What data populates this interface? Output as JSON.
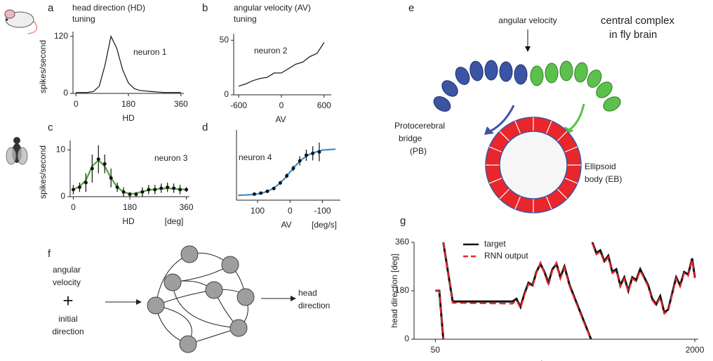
{
  "panels": {
    "a": {
      "label": "a",
      "title": [
        "head direction (HD)",
        "tuning"
      ],
      "ylabel": "spikes/second",
      "xlabel": "HD",
      "annotation": "neuron 1",
      "x": [
        0,
        20,
        40,
        60,
        80,
        100,
        120,
        140,
        160,
        180,
        200,
        220,
        240,
        260,
        280,
        300,
        320,
        340,
        360
      ],
      "values": [
        2,
        2,
        2,
        4,
        15,
        60,
        120,
        95,
        50,
        22,
        10,
        6,
        5,
        4,
        3,
        2,
        2,
        2,
        2
      ],
      "color": "#222222",
      "xlim": [
        -10,
        370
      ],
      "ylim": [
        0,
        130
      ],
      "xticks": [
        0,
        180,
        360
      ],
      "yticks": [
        0,
        120
      ]
    },
    "b": {
      "label": "b",
      "title": [
        "angular velocity (AV)",
        "tuning"
      ],
      "xlabel": "AV",
      "annotation": "neuron 2",
      "x": [
        -600,
        -500,
        -400,
        -300,
        -200,
        -100,
        0,
        100,
        200,
        300,
        400,
        500,
        600
      ],
      "values": [
        8,
        10,
        13,
        15,
        16,
        20,
        20,
        24,
        28,
        30,
        35,
        38,
        48
      ],
      "color": "#222222",
      "xlim": [
        -670,
        700
      ],
      "ylim": [
        0,
        56
      ],
      "xticks": [
        -600,
        0,
        600
      ],
      "yticks": [
        0,
        50
      ]
    },
    "c": {
      "label": "c",
      "ylabel": "spikes/second",
      "xlabel": "HD",
      "unit": "[deg]",
      "annotation": "neuron 3",
      "x": [
        0,
        20,
        40,
        60,
        80,
        100,
        120,
        140,
        160,
        180,
        200,
        220,
        240,
        260,
        280,
        300,
        320,
        340,
        360
      ],
      "values": [
        1.5,
        2,
        3,
        6,
        8,
        7,
        4,
        2,
        1,
        0.5,
        0.5,
        1,
        1.5,
        1.5,
        1.8,
        2,
        1.8,
        1.5,
        1.5
      ],
      "errors": [
        1,
        1,
        2,
        3,
        3,
        2,
        2,
        1,
        1,
        0.5,
        0.5,
        1,
        1,
        1,
        1,
        1,
        1,
        1,
        0.5
      ],
      "fit": [
        1.5,
        2.2,
        3.5,
        6.5,
        7.8,
        6.5,
        4,
        2,
        1,
        0.6,
        0.7,
        1.1,
        1.4,
        1.6,
        1.7,
        1.8,
        1.7,
        1.6,
        1.5
      ],
      "point_color": "#111111",
      "fit_color": "#4aa832",
      "xlim": [
        -10,
        370
      ],
      "ylim": [
        0,
        12
      ],
      "xticks": [
        0,
        180,
        360
      ],
      "yticks": [
        0,
        10
      ]
    },
    "d": {
      "label": "d",
      "xlabel": "AV",
      "unit": "[deg/s]",
      "annotation": "neuron 4",
      "x": [
        110,
        90,
        70,
        50,
        30,
        10,
        -10,
        -30,
        -50,
        -70,
        -90
      ],
      "values": [
        0.03,
        0.05,
        0.09,
        0.15,
        0.27,
        0.42,
        0.58,
        0.74,
        0.86,
        0.9,
        0.93
      ],
      "errors": [
        0.02,
        0.02,
        0.03,
        0.03,
        0.04,
        0.05,
        0.06,
        0.1,
        0.12,
        0.15,
        0.2
      ],
      "fit_x": [
        160,
        140,
        120,
        100,
        80,
        60,
        40,
        20,
        0,
        -20,
        -40,
        -60,
        -80,
        -100,
        -120,
        -140
      ],
      "fit": [
        0.005,
        0.009,
        0.018,
        0.034,
        0.065,
        0.12,
        0.21,
        0.34,
        0.5,
        0.66,
        0.79,
        0.88,
        0.93,
        0.97,
        0.98,
        0.99
      ],
      "point_color": "#111111",
      "fit_color": "#3a8fd0",
      "xlim": [
        165,
        -155
      ],
      "ylim": [
        -0.1,
        1.4
      ],
      "xticks": [
        100,
        0,
        -100
      ]
    },
    "e": {
      "label": "e",
      "title": [
        "central complex",
        "in fly brain"
      ],
      "input": "angular velocity",
      "pb": [
        "Protocerebral",
        "bridge",
        "(PB)"
      ],
      "eb": [
        "Ellipsoid",
        "body (EB)"
      ]
    },
    "f": {
      "label": "f",
      "input1": [
        "angular",
        "velocity"
      ],
      "plus": "+",
      "input2": [
        "initial",
        "direction"
      ],
      "output": [
        "head",
        "direction"
      ]
    },
    "g": {
      "label": "g",
      "ylabel": "head direction [deg]",
      "xlabel": "timestep",
      "x": [
        50,
        80,
        110,
        null,
        110,
        180,
        630,
        660,
        690,
        720,
        750,
        780,
        810,
        840,
        870,
        900,
        930,
        960,
        990,
        1020,
        1060,
        1100,
        1140,
        1180,
        1220,
        null,
        1230,
        1260,
        1290,
        1320,
        1350,
        1380,
        1410,
        1440,
        1470,
        1500,
        1530,
        1560,
        1590,
        1620,
        1650,
        1680,
        1710,
        1740,
        1770,
        1800,
        1830,
        1860,
        1890,
        1920,
        1950,
        1980,
        2000
      ],
      "series": [
        {
          "name": "target",
          "color": "#111111",
          "dash": false,
          "values": [
            180,
            180,
            0,
            null,
            360,
            140,
            140,
            150,
            120,
            170,
            210,
            200,
            250,
            280,
            250,
            210,
            260,
            280,
            230,
            270,
            200,
            150,
            100,
            50,
            0,
            null,
            360,
            320,
            330,
            290,
            310,
            250,
            260,
            200,
            230,
            180,
            230,
            220,
            260,
            230,
            200,
            150,
            130,
            160,
            100,
            110,
            170,
            230,
            200,
            250,
            240,
            300,
            230
          ]
        },
        {
          "name": "RNN output",
          "color": "#e8262b",
          "dash": true,
          "values": [
            180,
            178,
            0,
            null,
            360,
            135,
            132,
            145,
            115,
            165,
            205,
            195,
            245,
            285,
            245,
            200,
            255,
            285,
            225,
            265,
            195,
            145,
            95,
            45,
            0,
            null,
            355,
            315,
            325,
            285,
            305,
            245,
            255,
            195,
            225,
            175,
            225,
            215,
            255,
            225,
            195,
            145,
            125,
            155,
            95,
            105,
            165,
            225,
            195,
            245,
            235,
            295,
            225
          ]
        }
      ],
      "xlim": [
        -110,
        2026
      ],
      "ylim": [
        0,
        360
      ],
      "xticks": [
        50,
        2000
      ],
      "yticks": [
        0,
        180,
        360
      ]
    }
  }
}
